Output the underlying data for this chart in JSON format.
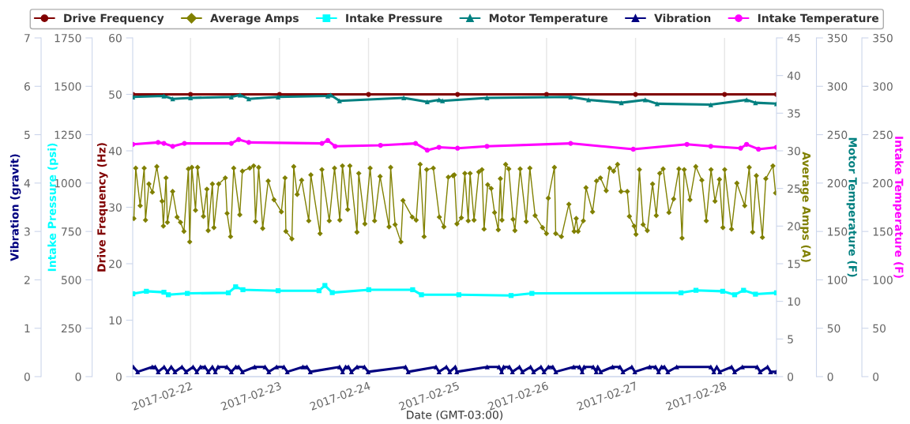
{
  "chart_data": [
    {
      "type": "line",
      "xlabel": "Date (GMT-03:00)",
      "ylabel": "Drive Frequency (Hz)",
      "ylim": [
        0,
        60
      ],
      "yticks": [
        0,
        10,
        20,
        30,
        40,
        50,
        60
      ],
      "y2label": "Average Amps (A)",
      "y2lim": [
        0,
        45
      ],
      "y2ticks": [
        0,
        5,
        10,
        15,
        20,
        25,
        30,
        35,
        40,
        45
      ],
      "y3label": "Intake Pressure (psi)",
      "y3lim": [
        0,
        1750
      ],
      "y3ticks": [
        0,
        250,
        500,
        750,
        1000,
        1250,
        1500,
        1750
      ],
      "xlim": [
        "2017-02-21T08:25",
        "2017-02-28T14:00"
      ],
      "xticks": [
        {
          "value": "2017-02-22",
          "label": "2017-02-22"
        },
        {
          "value": "2017-02-23",
          "label": "2017-02-23"
        },
        {
          "value": "2017-02-24",
          "label": "2017-02-24"
        },
        {
          "value": "2017-02-25",
          "label": "2017-02-25"
        },
        {
          "value": "2017-02-26",
          "label": "2017-02-26"
        },
        {
          "value": "2017-02-27",
          "label": "2017-02-27"
        },
        {
          "value": "2017-02-28",
          "label": "2017-02-28"
        }
      ],
      "grid": "x",
      "legend": "top",
      "series": [
        {
          "name": "Drive Frequency",
          "color": "#800000",
          "axis": "y",
          "marker": "circle",
          "x": [
            "2017-02-21T08:27",
            "2017-02-22T00:00",
            "2017-02-23T00:00",
            "2017-02-24T00:00",
            "2017-02-25T00:00",
            "2017-02-26T00:00",
            "2017-02-27T00:00",
            "2017-02-28T00:00",
            "2017-02-28T14:00"
          ],
          "values": [
            50,
            50,
            50,
            50,
            50,
            50,
            50,
            50,
            50
          ]
        },
        {
          "name": "Average Amps",
          "color": "#808000",
          "axis": "y2",
          "marker": "diamond",
          "x": [
            "2017-02-21T08:44",
            "2017-02-21T09:14",
            "2017-02-21T10:26",
            "2017-02-21T11:31",
            "2017-02-21T11:52",
            "2017-02-21T12:47",
            "2017-02-21T13:43",
            "2017-02-21T14:55",
            "2017-02-21T16:20",
            "2017-02-21T16:41",
            "2017-02-21T17:24",
            "2017-02-21T17:46",
            "2017-02-21T19:11",
            "2017-02-21T20:23",
            "2017-02-21T21:18",
            "2017-02-21T22:14",
            "2017-02-21T23:26",
            "2017-02-21T23:47",
            "2017-02-22T00:22",
            "2017-02-22T01:21",
            "2017-02-22T01:55",
            "2017-02-22T03:29",
            "2017-02-22T04:25",
            "2017-02-22T04:46",
            "2017-02-22T05:54",
            "2017-02-22T06:19",
            "2017-02-22T07:36",
            "2017-02-22T09:23",
            "2017-02-22T09:52",
            "2017-02-22T10:48",
            "2017-02-22T11:39",
            "2017-02-22T13:17",
            "2017-02-22T13:59",
            "2017-02-22T15:59",
            "2017-02-22T17:02",
            "2017-02-22T17:32",
            "2017-02-22T18:23",
            "2017-02-22T19:28",
            "2017-02-22T20:57",
            "2017-02-22T22:31",
            "2017-02-23T00:30",
            "2017-02-23T01:29",
            "2017-02-23T01:43",
            "2017-02-23T03:20",
            "2017-02-23T03:50",
            "2017-02-23T04:46",
            "2017-02-23T05:58",
            "2017-02-23T07:53",
            "2017-02-23T08:27",
            "2017-02-23T10:56",
            "2017-02-23T11:26",
            "2017-02-23T13:25",
            "2017-02-23T14:50",
            "2017-02-23T16:16",
            "2017-02-23T16:58",
            "2017-02-23T18:23",
            "2017-02-23T18:58",
            "2017-02-23T20:53",
            "2017-02-23T21:22",
            "2017-02-23T23:01",
            "2017-02-24T00:26",
            "2017-02-24T01:38",
            "2017-02-24T03:07",
            "2017-02-24T05:32",
            "2017-02-24T05:58",
            "2017-02-24T07:10",
            "2017-02-24T08:44",
            "2017-02-24T09:18",
            "2017-02-24T11:47",
            "2017-02-24T12:51",
            "2017-02-24T13:55",
            "2017-02-24T14:59",
            "2017-02-24T15:41",
            "2017-02-24T17:28",
            "2017-02-24T19:06",
            "2017-02-24T20:19",
            "2017-02-24T21:31",
            "2017-02-24T22:47",
            "2017-02-24T23:08",
            "2017-02-24T23:50",
            "2017-02-25T01:02",
            "2017-02-25T01:58",
            "2017-02-25T02:53",
            "2017-02-25T03:23",
            "2017-02-25T04:27",
            "2017-02-25T05:44",
            "2017-02-25T06:35",
            "2017-02-25T07:09",
            "2017-02-25T08:08",
            "2017-02-25T09:04",
            "2017-02-25T09:59",
            "2017-02-25T10:59",
            "2017-02-25T11:33",
            "2017-02-25T11:59",
            "2017-02-25T12:58",
            "2017-02-25T13:49",
            "2017-02-25T14:58",
            "2017-02-25T15:28",
            "2017-02-25T16:53",
            "2017-02-25T18:31",
            "2017-02-25T19:30",
            "2017-02-25T20:55",
            "2017-02-25T22:55",
            "2017-02-25T23:59",
            "2017-02-26T00:28",
            "2017-02-26T02:07",
            "2017-02-26T02:28",
            "2017-02-26T04:01",
            "2017-02-26T06:01",
            "2017-02-26T07:26",
            "2017-02-26T08:00",
            "2017-02-26T08:30",
            "2017-02-26T09:55",
            "2017-02-26T10:38",
            "2017-02-26T12:24",
            "2017-02-26T13:28",
            "2017-02-26T14:32",
            "2017-02-26T16:05",
            "2017-02-26T17:01",
            "2017-02-26T18:05",
            "2017-02-26T19:09",
            "2017-02-26T20:04",
            "2017-02-26T21:46",
            "2017-02-26T22:20",
            "2017-02-26T23:37",
            "2017-02-27T00:07",
            "2017-02-27T01:02",
            "2017-02-27T02:02",
            "2017-02-27T03:10",
            "2017-02-27T04:35",
            "2017-02-27T05:35",
            "2017-02-27T06:31",
            "2017-02-27T07:26",
            "2017-02-27T09:00",
            "2017-02-27T10:16",
            "2017-02-27T11:41",
            "2017-02-27T12:32",
            "2017-02-27T13:07",
            "2017-02-27T14:40",
            "2017-02-27T16:14",
            "2017-02-27T17:52",
            "2017-02-27T19:04",
            "2017-02-27T20:21",
            "2017-02-27T21:25",
            "2017-02-27T22:37",
            "2017-02-27T23:33",
            "2017-02-28T00:02",
            "2017-02-28T01:53",
            "2017-02-28T03:19",
            "2017-02-28T05:26",
            "2017-02-28T06:39",
            "2017-02-28T07:34",
            "2017-02-28T08:34",
            "2017-02-28T10:12",
            "2017-02-28T11:07",
            "2017-02-28T13:02",
            "2017-02-28T13:45"
          ],
          "values": [
            21.0,
            27.7,
            22.7,
            27.7,
            20.8,
            25.6,
            24.5,
            27.9,
            23.3,
            20.0,
            26.4,
            20.5,
            24.6,
            21.2,
            20.5,
            19.3,
            27.6,
            17.9,
            27.8,
            22.1,
            27.8,
            21.3,
            24.9,
            19.4,
            25.6,
            19.8,
            25.6,
            26.4,
            21.7,
            18.6,
            27.7,
            21.5,
            27.3,
            27.7,
            28.0,
            20.6,
            27.8,
            19.7,
            26.0,
            23.5,
            21.9,
            26.4,
            19.3,
            18.3,
            27.9,
            24.2,
            26.1,
            20.7,
            26.8,
            19.0,
            27.5,
            20.7,
            27.7,
            20.8,
            28.0,
            22.2,
            28.0,
            19.2,
            27.0,
            20.3,
            27.7,
            20.7,
            26.6,
            19.9,
            27.8,
            20.2,
            17.9,
            23.4,
            21.2,
            20.8,
            28.2,
            18.6,
            27.5,
            27.7,
            21.2,
            19.9,
            26.5,
            26.7,
            26.8,
            20.3,
            21.1,
            27.0,
            20.7,
            27.0,
            20.8,
            27.2,
            27.5,
            19.6,
            25.5,
            25.0,
            21.8,
            19.5,
            26.3,
            20.8,
            28.2,
            27.6,
            20.9,
            19.4,
            27.6,
            20.6,
            27.7,
            21.4,
            19.8,
            19.0,
            23.7,
            27.8,
            19.0,
            18.6,
            22.9,
            19.3,
            21.0,
            19.3,
            20.7,
            25.1,
            21.9,
            26.0,
            26.4,
            24.7,
            27.7,
            27.3,
            28.2,
            24.6,
            24.6,
            21.3,
            20.0,
            18.9,
            27.5,
            20.2,
            19.4,
            25.6,
            21.4,
            27.0,
            27.6,
            21.8,
            23.6,
            27.6,
            18.4,
            27.5,
            23.5,
            27.9,
            26.1,
            20.7,
            27.5,
            23.3,
            26.2,
            19.8,
            27.5,
            19.6,
            25.7,
            22.7,
            27.8,
            19.2,
            26.7,
            18.5,
            26.3,
            28.0,
            24.4
          ]
        },
        {
          "name": "Intake Pressure",
          "color": "#00ffff",
          "axis": "y3",
          "marker": "square",
          "x": [
            "2017-02-21T08:27",
            "2017-02-21T12:06",
            "2017-02-21T16:50",
            "2017-02-21T18:02",
            "2017-02-21T23:09",
            "2017-02-22T10:12",
            "2017-02-22T12:10",
            "2017-02-22T14:08",
            "2017-02-22T23:37",
            "2017-02-23T10:39",
            "2017-02-23T12:14",
            "2017-02-23T14:13",
            "2017-02-24T00:04",
            "2017-02-24T11:54",
            "2017-02-24T14:16",
            "2017-02-25T00:21",
            "2017-02-25T14:26",
            "2017-02-25T20:03",
            "2017-02-27T12:15",
            "2017-02-27T16:17",
            "2017-02-27T23:30",
            "2017-02-28T02:43",
            "2017-02-28T05:07",
            "2017-02-28T08:20",
            "2017-02-28T14:00"
          ],
          "values": [
            428,
            441,
            436,
            423,
            430,
            433,
            464,
            449,
            444,
            444,
            471,
            434,
            449,
            449,
            423,
            423,
            419,
            430,
            433,
            446,
            441,
            423,
            446,
            426,
            433
          ]
        }
      ]
    },
    {
      "type": "line",
      "ylabel": "Motor Temperature (F)",
      "ylim": [
        0,
        350
      ],
      "yticks": [
        0,
        50,
        100,
        150,
        200,
        250,
        300,
        350
      ],
      "y2label": "Vibration (gravit)",
      "y2lim": [
        0,
        7
      ],
      "y2ticks": [
        0,
        1,
        2,
        3,
        4,
        5,
        6,
        7
      ],
      "y3label": "Intake Temperature (F)",
      "y3lim": [
        0,
        350
      ],
      "y3ticks": [
        0,
        50,
        100,
        150,
        200,
        250,
        300,
        350
      ],
      "xlim": [
        "2017-02-21T08:25",
        "2017-02-28T14:00"
      ],
      "legend": "top",
      "series": [
        {
          "name": "Motor Temperature",
          "color": "#008080",
          "axis": "y",
          "marker": "triangle",
          "x": [
            "2017-02-21T08:27",
            "2017-02-21T16:50",
            "2017-02-21T19:12",
            "2017-02-22T00:00",
            "2017-02-22T11:00",
            "2017-02-22T13:22",
            "2017-02-22T15:43",
            "2017-02-22T23:37",
            "2017-02-23T13:01",
            "2017-02-23T13:48",
            "2017-02-23T16:10",
            "2017-02-24T09:30",
            "2017-02-24T15:50",
            "2017-02-24T19:00",
            "2017-02-24T19:57",
            "2017-02-25T07:56",
            "2017-02-26T06:30",
            "2017-02-26T11:20",
            "2017-02-26T20:10",
            "2017-02-27T02:36",
            "2017-02-27T05:49",
            "2017-02-27T20:17",
            "2017-02-28T05:56",
            "2017-02-28T08:20",
            "2017-02-28T14:00"
          ],
          "values": [
            289,
            290,
            287,
            288,
            289,
            291,
            287,
            289,
            290,
            291,
            285,
            288,
            284,
            286,
            285,
            288,
            289,
            286,
            283,
            286,
            282,
            281,
            286,
            283,
            282
          ]
        },
        {
          "name": "Vibration",
          "color": "#000080",
          "axis": "y2",
          "marker": "triangle",
          "x": [
            "2017-02-21T08:36",
            "2017-02-21T09:45",
            "2017-02-21T13:42",
            "2017-02-21T14:30",
            "2017-02-21T15:18",
            "2017-02-21T16:54",
            "2017-02-21T17:48",
            "2017-02-21T18:48",
            "2017-02-21T19:48",
            "2017-02-21T21:42",
            "2017-02-21T22:48",
            "2017-02-22T00:42",
            "2017-02-22T01:42",
            "2017-02-22T02:42",
            "2017-02-22T03:54",
            "2017-02-22T04:48",
            "2017-02-22T05:54",
            "2017-02-22T06:42",
            "2017-02-22T07:24",
            "2017-02-22T09:48",
            "2017-02-22T11:00",
            "2017-02-22T12:12",
            "2017-02-22T13:00",
            "2017-02-22T14:00",
            "2017-02-22T17:18",
            "2017-02-22T20:06",
            "2017-02-22T21:06",
            "2017-02-22T23:12",
            "2017-02-23T01:12",
            "2017-02-23T02:06",
            "2017-02-23T06:18",
            "2017-02-23T07:24",
            "2017-02-23T08:18",
            "2017-02-23T16:12",
            "2017-02-23T17:00",
            "2017-02-23T17:48",
            "2017-02-23T18:36",
            "2017-02-23T19:24",
            "2017-02-23T20:54",
            "2017-02-23T22:54",
            "2017-02-23T23:54",
            "2017-02-24T10:00",
            "2017-02-24T10:42",
            "2017-02-24T18:12",
            "2017-02-24T19:00",
            "2017-02-24T21:00",
            "2017-02-24T21:54",
            "2017-02-24T23:24",
            "2017-02-24T23:48",
            "2017-02-25T08:00",
            "2017-02-25T11:12",
            "2017-02-25T11:54",
            "2017-02-25T12:24",
            "2017-02-25T14:00",
            "2017-02-25T14:48",
            "2017-02-25T16:42",
            "2017-02-25T17:30",
            "2017-02-25T19:42",
            "2017-02-25T20:30",
            "2017-02-25T22:30",
            "2017-02-25T23:18",
            "2017-02-26T00:30",
            "2017-02-26T01:42",
            "2017-02-26T02:30",
            "2017-02-26T07:18",
            "2017-02-26T08:54",
            "2017-02-26T09:36",
            "2017-02-26T10:06",
            "2017-02-26T12:36",
            "2017-02-26T13:24",
            "2017-02-26T13:48",
            "2017-02-26T14:36",
            "2017-02-26T17:48",
            "2017-02-26T19:48",
            "2017-02-26T20:36",
            "2017-02-26T23:00",
            "2017-02-26T23:48",
            "2017-02-27T03:48",
            "2017-02-27T05:24",
            "2017-02-27T06:12",
            "2017-02-27T07:00",
            "2017-02-27T07:48",
            "2017-02-27T08:42",
            "2017-02-27T11:06",
            "2017-02-27T20:18",
            "2017-02-27T21:06",
            "2017-02-27T21:54",
            "2017-02-27T22:42",
            "2017-02-28T01:54",
            "2017-02-28T02:42",
            "2017-02-28T04:48",
            "2017-02-28T08:48",
            "2017-02-28T09:36",
            "2017-02-28T11:36",
            "2017-02-28T12:24",
            "2017-02-28T14:00"
          ],
          "values": [
            0.2,
            0.1,
            0.2,
            0.2,
            0.1,
            0.2,
            0.1,
            0.2,
            0.1,
            0.2,
            0.1,
            0.2,
            0.1,
            0.2,
            0.2,
            0.1,
            0.2,
            0.1,
            0.2,
            0.2,
            0.1,
            0.2,
            0.2,
            0.1,
            0.2,
            0.2,
            0.1,
            0.2,
            0.2,
            0.1,
            0.2,
            0.2,
            0.1,
            0.2,
            0.1,
            0.2,
            0.2,
            0.1,
            0.2,
            0.2,
            0.1,
            0.2,
            0.1,
            0.2,
            0.1,
            0.2,
            0.1,
            0.2,
            0.1,
            0.2,
            0.2,
            0.1,
            0.2,
            0.2,
            0.1,
            0.2,
            0.1,
            0.2,
            0.1,
            0.2,
            0.1,
            0.2,
            0.2,
            0.1,
            0.2,
            0.2,
            0.1,
            0.2,
            0.2,
            0.1,
            0.2,
            0.1,
            0.2,
            0.2,
            0.1,
            0.2,
            0.1,
            0.2,
            0.2,
            0.1,
            0.2,
            0.2,
            0.1,
            0.2,
            0.2,
            0.1,
            0.2,
            0.1,
            0.2,
            0.1,
            0.2,
            0.2,
            0.1,
            0.2,
            0.1,
            0.1
          ]
        },
        {
          "name": "Intake Temperature",
          "color": "#ff00ff",
          "axis": "y3",
          "marker": "circle",
          "x": [
            "2017-02-21T08:27",
            "2017-02-21T15:16",
            "2017-02-21T16:50",
            "2017-02-21T19:12",
            "2017-02-21T22:22",
            "2017-02-22T11:00",
            "2017-02-22T13:00",
            "2017-02-22T15:43",
            "2017-02-23T11:26",
            "2017-02-23T13:01",
            "2017-02-23T14:59",
            "2017-02-24T03:14",
            "2017-02-24T12:41",
            "2017-02-24T15:50",
            "2017-02-24T19:00",
            "2017-02-25T00:00",
            "2017-02-25T07:56",
            "2017-02-26T06:30",
            "2017-02-26T23:23",
            "2017-02-27T13:51",
            "2017-02-27T20:17",
            "2017-02-28T04:20",
            "2017-02-28T05:56",
            "2017-02-28T09:09",
            "2017-02-28T14:00"
          ],
          "values": [
            240,
            242,
            241,
            238,
            241,
            241,
            245,
            242,
            241,
            244,
            238,
            239,
            241,
            234,
            237,
            236,
            238,
            241,
            235,
            240,
            238,
            236,
            240,
            235,
            237
          ]
        }
      ]
    }
  ]
}
